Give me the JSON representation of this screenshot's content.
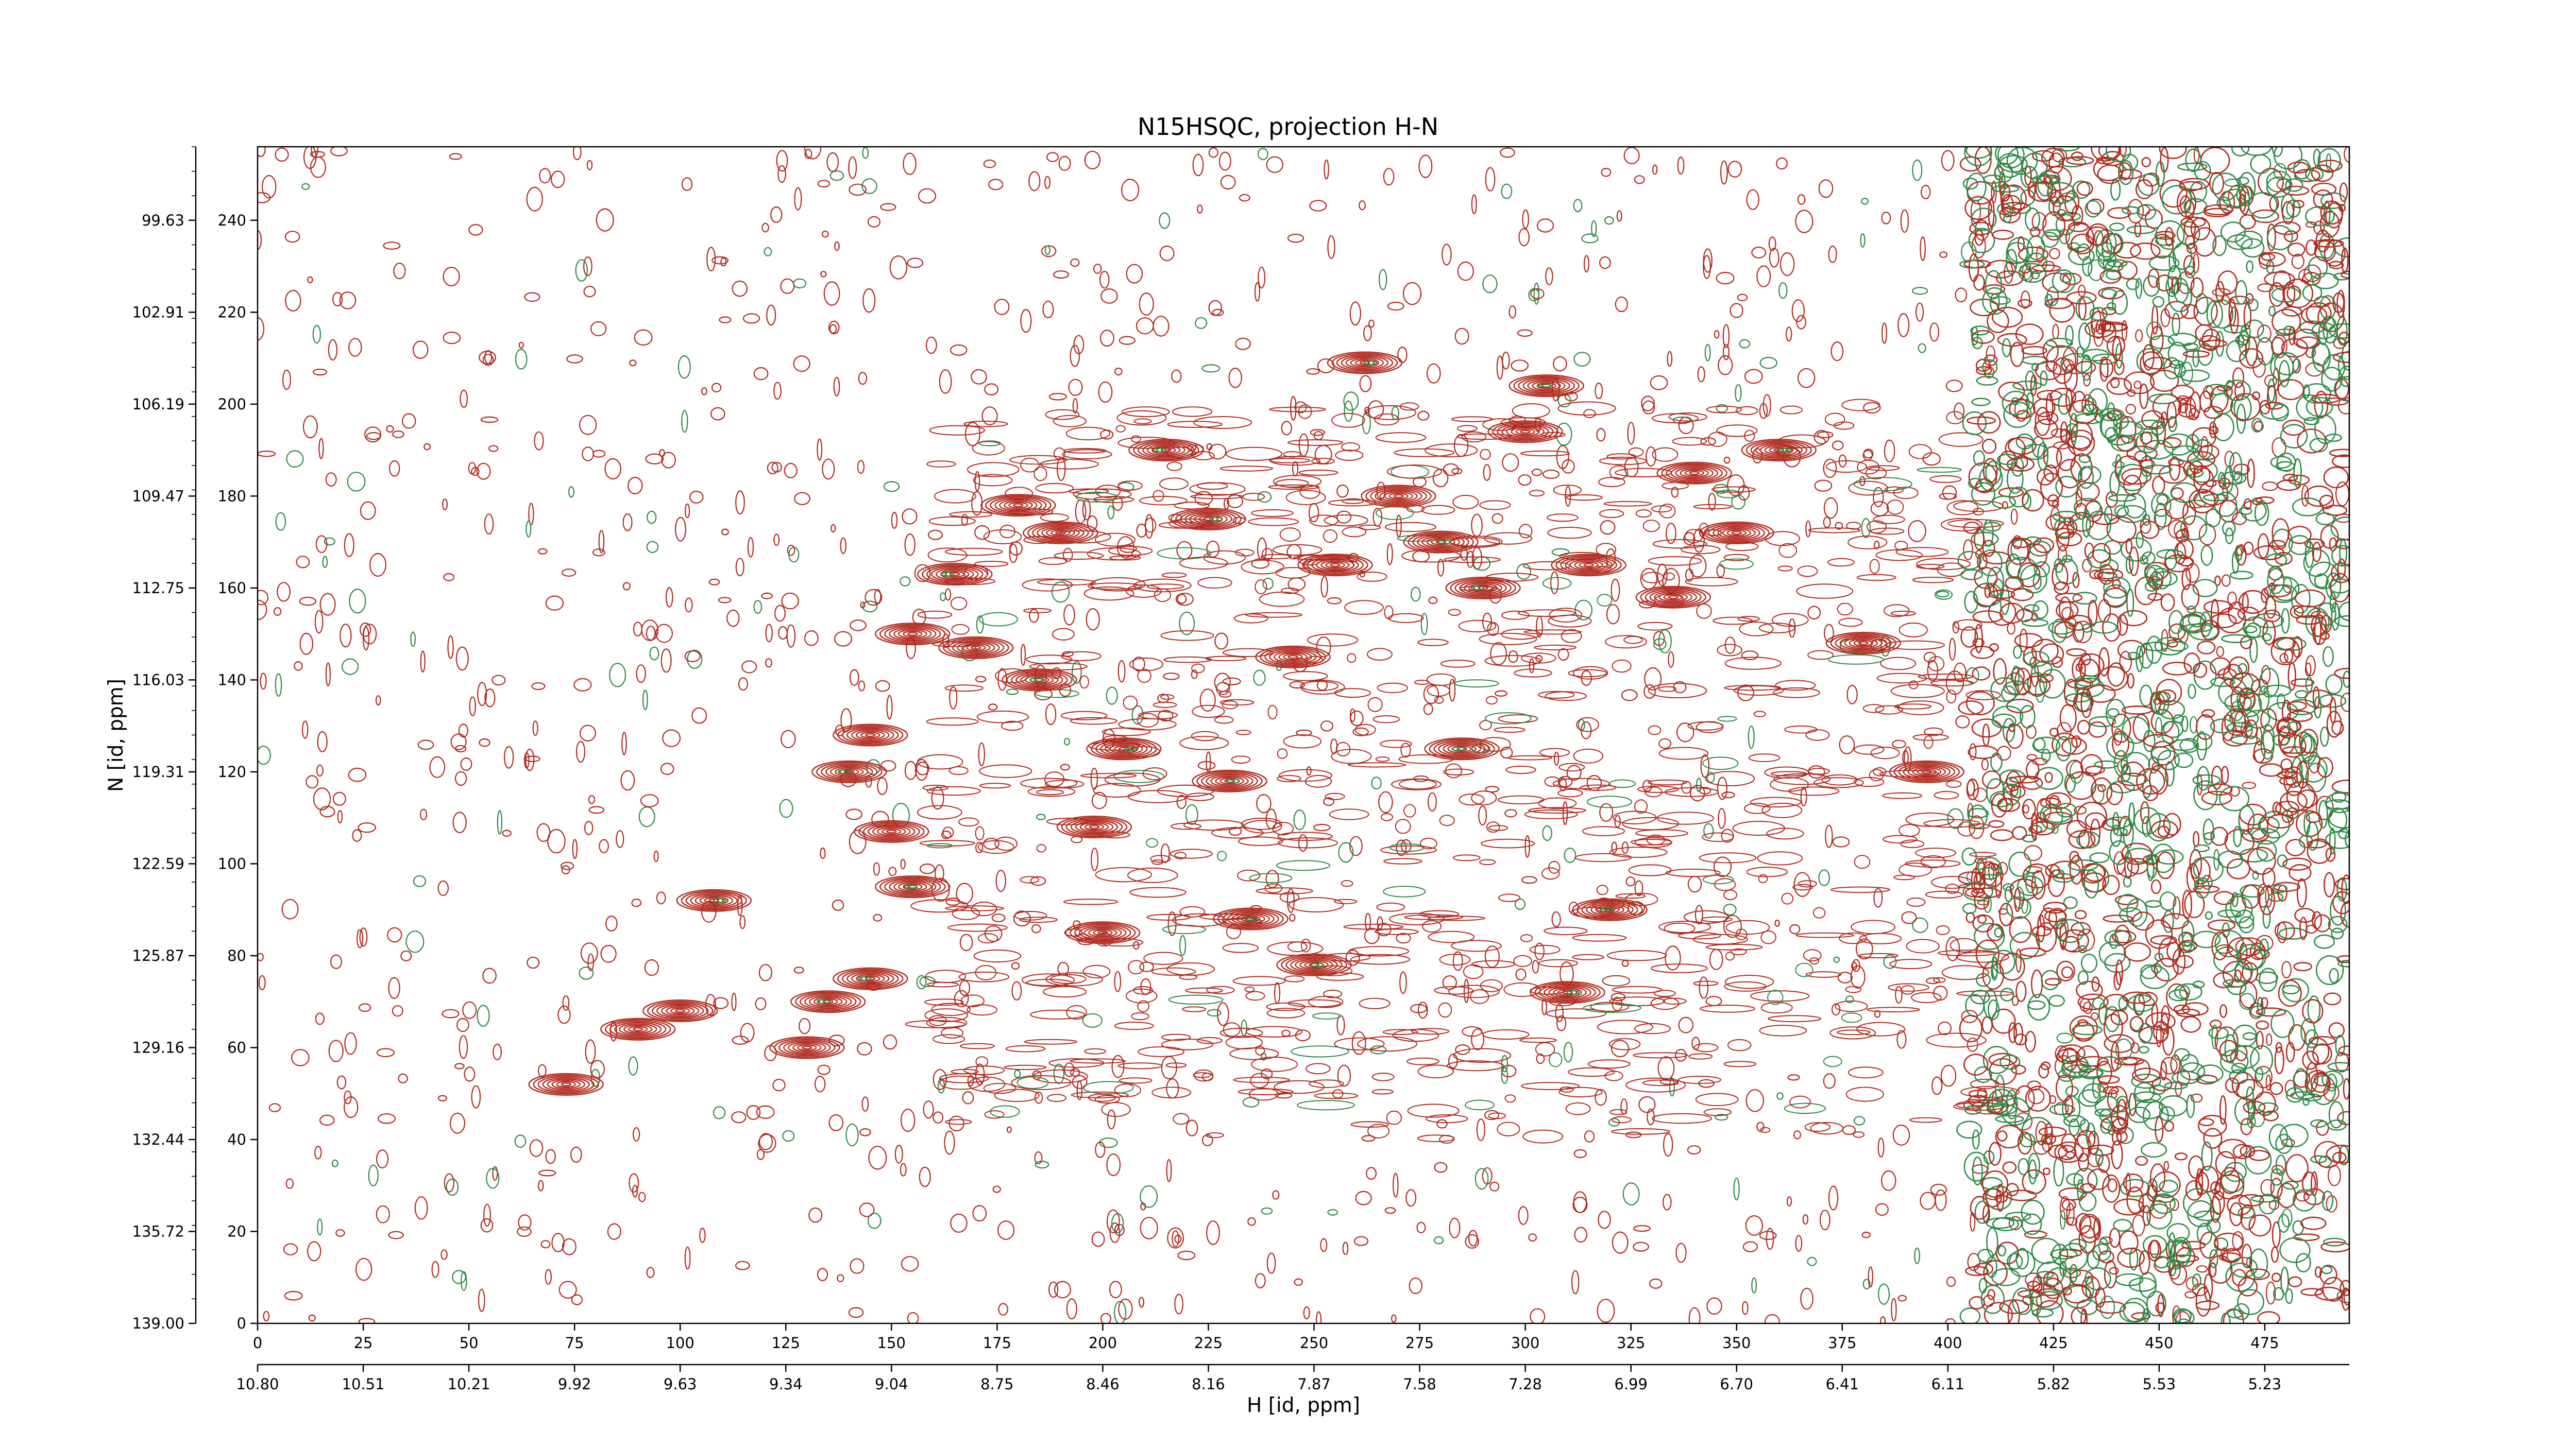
{
  "chart_data": {
    "type": "contour",
    "title": "N15HSQC, projection H-N",
    "xlabel": "H [id, ppm]",
    "ylabel": "N [id, ppm]",
    "xlim": [
      0,
      495
    ],
    "ylim": [
      0,
      256
    ],
    "x_index_ticks": [
      0,
      25,
      50,
      75,
      100,
      125,
      150,
      175,
      200,
      225,
      250,
      275,
      300,
      325,
      350,
      375,
      400,
      425,
      450,
      475
    ],
    "x_ppm_ticks": [
      "10.80",
      "10.51",
      "10.21",
      "9.92",
      "9.63",
      "9.34",
      "9.04",
      "8.75",
      "8.46",
      "8.16",
      "7.87",
      "7.58",
      "7.28",
      "6.99",
      "6.70",
      "6.41",
      "6.11",
      "5.82",
      "5.53",
      "5.23"
    ],
    "y_index_ticks": [
      0,
      20,
      40,
      60,
      80,
      100,
      120,
      140,
      160,
      180,
      200,
      220,
      240
    ],
    "y_ppm_ticks": [
      "139.00",
      "135.72",
      "132.44",
      "129.16",
      "125.87",
      "122.59",
      "119.31",
      "116.03",
      "112.75",
      "109.47",
      "106.19",
      "102.91",
      "99.63"
    ],
    "contour_colors": {
      "positive": "#b22a1e",
      "negative": "#2e8b46"
    },
    "peaks": [
      {
        "x": 73,
        "y": 52
      },
      {
        "x": 90,
        "y": 64
      },
      {
        "x": 100,
        "y": 68
      },
      {
        "x": 108,
        "y": 92
      },
      {
        "x": 130,
        "y": 60
      },
      {
        "x": 135,
        "y": 70
      },
      {
        "x": 145,
        "y": 75
      },
      {
        "x": 140,
        "y": 120
      },
      {
        "x": 145,
        "y": 128
      },
      {
        "x": 150,
        "y": 107
      },
      {
        "x": 155,
        "y": 95
      },
      {
        "x": 155,
        "y": 150
      },
      {
        "x": 165,
        "y": 163
      },
      {
        "x": 170,
        "y": 147
      },
      {
        "x": 180,
        "y": 178
      },
      {
        "x": 190,
        "y": 172
      },
      {
        "x": 185,
        "y": 140
      },
      {
        "x": 200,
        "y": 85
      },
      {
        "x": 198,
        "y": 108
      },
      {
        "x": 205,
        "y": 125
      },
      {
        "x": 215,
        "y": 190
      },
      {
        "x": 225,
        "y": 175
      },
      {
        "x": 230,
        "y": 118
      },
      {
        "x": 235,
        "y": 88
      },
      {
        "x": 250,
        "y": 78
      },
      {
        "x": 245,
        "y": 145
      },
      {
        "x": 255,
        "y": 165
      },
      {
        "x": 262,
        "y": 209
      },
      {
        "x": 270,
        "y": 180
      },
      {
        "x": 280,
        "y": 170
      },
      {
        "x": 285,
        "y": 125
      },
      {
        "x": 290,
        "y": 160
      },
      {
        "x": 300,
        "y": 194
      },
      {
        "x": 305,
        "y": 204
      },
      {
        "x": 310,
        "y": 72
      },
      {
        "x": 315,
        "y": 165
      },
      {
        "x": 320,
        "y": 90
      },
      {
        "x": 335,
        "y": 158
      },
      {
        "x": 340,
        "y": 185
      },
      {
        "x": 350,
        "y": 172
      },
      {
        "x": 360,
        "y": 190
      },
      {
        "x": 380,
        "y": 148
      },
      {
        "x": 395,
        "y": 120
      }
    ]
  }
}
